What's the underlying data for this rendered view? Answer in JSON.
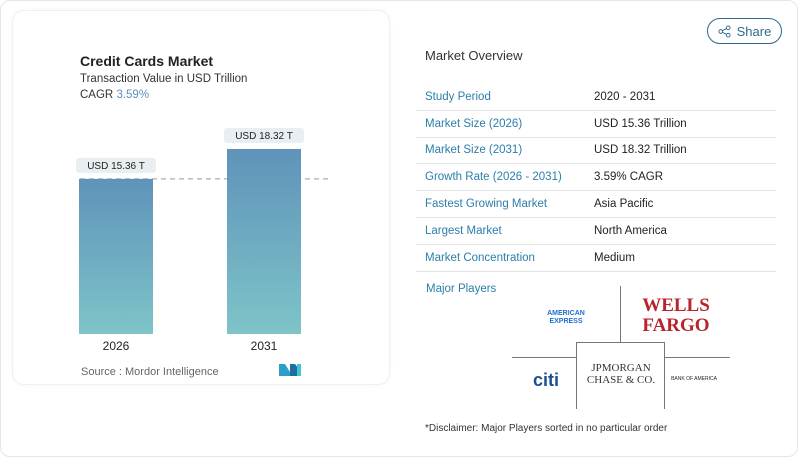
{
  "chart_card": {
    "title": "Credit Cards Market",
    "subtitle": "Transaction Value in USD Trillion",
    "cagr_label": "CAGR",
    "cagr_value": "3.59%",
    "source": "Source :  Mordor Intelligence"
  },
  "chart_data": {
    "type": "bar",
    "categories": [
      "2026",
      "2031"
    ],
    "values": [
      15.36,
      18.32
    ],
    "data_labels": [
      "USD 15.36 T",
      "USD 18.32 T"
    ],
    "ylim": [
      0,
      20
    ],
    "grid": false,
    "reference_line": 15.36,
    "colors": {
      "bar_top": "#5f93ba",
      "bar_bottom": "#7ec4c8"
    }
  },
  "share_label": "Share",
  "overview": {
    "title": "Market Overview",
    "rows": [
      {
        "label": "Study Period",
        "value": "2020 - 2031"
      },
      {
        "label": "Market Size (2026)",
        "value": "USD 15.36 Trillion"
      },
      {
        "label": "Market Size (2031)",
        "value": "USD 18.32 Trillion"
      },
      {
        "label": "Growth Rate (2026 - 2031)",
        "value": "3.59% CAGR"
      },
      {
        "label": "Fastest Growing Market",
        "value": "Asia Pacific"
      },
      {
        "label": "Largest Market",
        "value": "North America"
      },
      {
        "label": "Market Concentration",
        "value": "Medium"
      }
    ]
  },
  "players": {
    "title": "Major Players",
    "logos": [
      "AMERICAN EXPRESS",
      "WELLS FARGO",
      "JPMORGAN CHASE & CO.",
      "citi",
      "BANK OF AMERICA"
    ],
    "disclaimer": "*Disclaimer: Major Players sorted in no particular order"
  },
  "accent": "#2b7fab"
}
